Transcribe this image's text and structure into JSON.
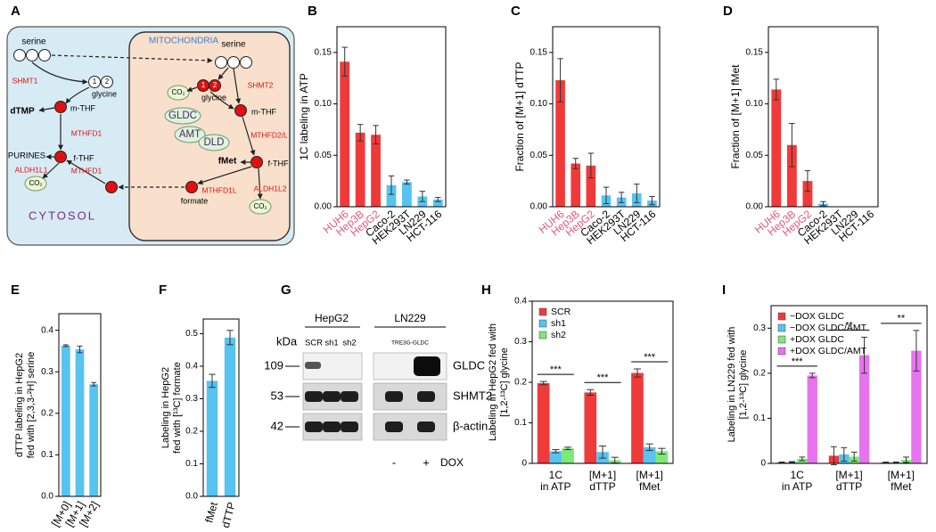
{
  "diagram": {
    "panel": "A",
    "texts": [
      "serine",
      "serine",
      "MITOCHONDRIA",
      "SHMT1",
      "SHMT2",
      "glycine",
      "glycine",
      "dTMP",
      "m-THF",
      "m-THF",
      "GLDC",
      "AMT",
      "DLD",
      "MTHFD1",
      "MTHFD2/L",
      "PURINES",
      "f-THF",
      "fMet",
      "f-THF",
      "ALDH1L1",
      "MTHFD1",
      "MTHFD1L",
      "ALDH1L2",
      "formate",
      "CO₂",
      "CO₂",
      "CO₂",
      "CYTOSOL",
      "1",
      "2",
      "1",
      "2"
    ]
  },
  "chart_data": [
    {
      "panel": "B",
      "type": "bar",
      "ylabel": "1C labeling in ATP",
      "categories": [
        "HUH6",
        "Hep3B",
        "HepG2",
        "Caco-2",
        "HEK293T",
        "LN229",
        "HCT-116"
      ],
      "category_colors": [
        "#e8587a",
        "#e8587a",
        "#e8587a",
        "#000000",
        "#000000",
        "#000000",
        "#000000"
      ],
      "ylim": [
        0,
        0.175
      ],
      "yticks": [
        {
          "value": 0,
          "label": "0.00"
        },
        {
          "value": 0.05,
          "label": "0.05"
        },
        {
          "value": 0.1,
          "label": "0.10"
        },
        {
          "value": 0.15,
          "label": "0.15"
        }
      ],
      "series": [
        {
          "colors": [
            "#f03a3a",
            "#f03a3a",
            "#f03a3a",
            "#56c3f0",
            "#56c3f0",
            "#56c3f0",
            "#56c3f0"
          ],
          "values": [
            0.141,
            0.072,
            0.07,
            0.021,
            0.024,
            0.01,
            0.007
          ],
          "errors": [
            0.014,
            0.008,
            0.009,
            0.009,
            0.002,
            0.005,
            0.002
          ]
        }
      ]
    },
    {
      "panel": "C",
      "type": "bar",
      "ylabel": "Fraction of [M+1] dTTP",
      "categories": [
        "HUH6",
        "Hep3B",
        "HepG2",
        "Caco-2",
        "HEK293T",
        "LN229",
        "HCT-116"
      ],
      "category_colors": [
        "#e8587a",
        "#e8587a",
        "#e8587a",
        "#000000",
        "#000000",
        "#000000",
        "#000000"
      ],
      "ylim": [
        0,
        0.175
      ],
      "yticks": [
        {
          "value": 0,
          "label": "0.00"
        },
        {
          "value": 0.05,
          "label": "0.05"
        },
        {
          "value": 0.1,
          "label": "0.10"
        },
        {
          "value": 0.15,
          "label": "0.15"
        }
      ],
      "series": [
        {
          "colors": [
            "#f03a3a",
            "#f03a3a",
            "#f03a3a",
            "#56c3f0",
            "#56c3f0",
            "#56c3f0",
            "#56c3f0"
          ],
          "values": [
            0.123,
            0.042,
            0.04,
            0.011,
            0.009,
            0.013,
            0.006
          ],
          "errors": [
            0.021,
            0.005,
            0.012,
            0.008,
            0.005,
            0.009,
            0.004
          ]
        }
      ]
    },
    {
      "panel": "D",
      "type": "bar",
      "ylabel": "Fraction of [M+1] fMet",
      "categories": [
        "HUH6",
        "Hep3B",
        "HepG2",
        "Caco-2",
        "HEK293T",
        "LN229",
        "HCT-116"
      ],
      "category_colors": [
        "#e8587a",
        "#e8587a",
        "#e8587a",
        "#000000",
        "#000000",
        "#000000",
        "#000000"
      ],
      "ylim": [
        0,
        0.175
      ],
      "yticks": [
        {
          "value": 0,
          "label": "0.00"
        },
        {
          "value": 0.05,
          "label": "0.05"
        },
        {
          "value": 0.1,
          "label": "0.10"
        },
        {
          "value": 0.15,
          "label": "0.15"
        }
      ],
      "series": [
        {
          "colors": [
            "#f03a3a",
            "#f03a3a",
            "#f03a3a",
            "#56c3f0",
            "#56c3f0",
            "#56c3f0",
            "#56c3f0"
          ],
          "values": [
            0.114,
            0.06,
            0.025,
            0.003,
            0,
            0,
            0
          ],
          "errors": [
            0.01,
            0.021,
            0.01,
            0.002,
            0,
            0,
            0
          ]
        }
      ]
    },
    {
      "panel": "E",
      "type": "bar",
      "ylabel": [
        "dTTP labeling in HepG2",
        "fed with [2,3,3-²H] serine"
      ],
      "categories": [
        "[M+0]",
        "[M+1]",
        "[M+2]"
      ],
      "ylim": [
        0,
        0.44
      ],
      "yticks": [
        {
          "value": 0,
          "label": "0.0"
        },
        {
          "value": 0.1,
          "label": "0.1"
        },
        {
          "value": 0.2,
          "label": "0.2"
        },
        {
          "value": 0.3,
          "label": "0.3"
        },
        {
          "value": 0.4,
          "label": "0.4"
        }
      ],
      "series": [
        {
          "color": "#56c3f0",
          "values": [
            0.363,
            0.354,
            0.27
          ],
          "errors": [
            0.002,
            0.008,
            0.004
          ]
        }
      ]
    },
    {
      "panel": "F",
      "type": "bar",
      "ylabel": [
        "Labeling in HepG2",
        "fed with [¹³C] formate"
      ],
      "categories": [
        "fMet",
        "dTTP"
      ],
      "ylim": [
        0,
        0.545
      ],
      "yticks": [
        {
          "value": 0,
          "label": "0.0"
        },
        {
          "value": 0.1,
          "label": "0.1"
        },
        {
          "value": 0.2,
          "label": "0.2"
        },
        {
          "value": 0.3,
          "label": "0.3"
        },
        {
          "value": 0.4,
          "label": "0.4"
        },
        {
          "value": 0.5,
          "label": "0.5"
        }
      ],
      "series": [
        {
          "color": "#56c3f0",
          "values": [
            0.355,
            0.488
          ],
          "errors": [
            0.02,
            0.022
          ]
        }
      ]
    },
    {
      "panel": "H",
      "type": "bar",
      "ylabel": [
        "Labeling in HepG2 fed with",
        "[1,2-¹³C] glycine"
      ],
      "categories": [
        [
          "1C",
          "in ATP"
        ],
        [
          "[M+1]",
          "dTTP"
        ],
        [
          "[M+1]",
          "fMet"
        ]
      ],
      "ylim": [
        0,
        0.4
      ],
      "yticks": [
        0,
        0.1,
        0.2,
        0.3,
        0.4
      ],
      "legend": "upper left",
      "series": [
        {
          "name": "SCR",
          "color": "#f03a3a",
          "values": [
            0.198,
            0.175,
            0.223
          ],
          "errors": [
            0.004,
            0.007,
            0.01
          ]
        },
        {
          "name": "sh1",
          "color": "#56c3f0",
          "values": [
            0.03,
            0.028,
            0.04
          ],
          "errors": [
            0.004,
            0.015,
            0.008
          ]
        },
        {
          "name": "sh2",
          "color": "#7ee87a",
          "values": [
            0.037,
            0.008,
            0.03
          ],
          "errors": [
            0.003,
            0.007,
            0.007
          ]
        }
      ],
      "annotations": [
        "***",
        "***",
        "***"
      ]
    },
    {
      "panel": "I",
      "type": "bar",
      "ylabel": [
        "Labeling in LN229 fed with",
        "[1,2-¹³C] glycine"
      ],
      "categories": [
        [
          "1C",
          "in ATP"
        ],
        [
          "[M+1]",
          "dTTP"
        ],
        [
          "[M+1]",
          "fMet"
        ]
      ],
      "ylim": [
        0,
        0.35
      ],
      "yticks": [
        0,
        0.1,
        0.2,
        0.3
      ],
      "legend": "upper left",
      "series": [
        {
          "name": "−DOX GLDC",
          "color": "#f03a3a",
          "values": [
            0.002,
            0.017,
            0.002
          ],
          "errors": [
            0.001,
            0.02,
            0.001
          ]
        },
        {
          "name": "−DOX GLDC/AMT",
          "color": "#56c3f0",
          "values": [
            0.003,
            0.02,
            0.002
          ],
          "errors": [
            0.001,
            0.015,
            0.001
          ]
        },
        {
          "name": "+DOX GLDC",
          "color": "#7ee87a",
          "values": [
            0.01,
            0.015,
            0.008
          ],
          "errors": [
            0.004,
            0.01,
            0.006
          ]
        },
        {
          "name": "+DOX GLDC/AMT",
          "color": "#e873ef",
          "values": [
            0.195,
            0.24,
            0.25
          ],
          "errors": [
            0.005,
            0.04,
            0.045
          ]
        }
      ],
      "annotations": [
        "***",
        "**",
        "**"
      ]
    }
  ],
  "blot": {
    "panel": "G",
    "cell_lines": [
      "HepG2",
      "LN229"
    ],
    "lanes": [
      "SCR",
      "sh1",
      "sh2",
      "TRE3G-GLDC"
    ],
    "size_unit": "kDa",
    "markers": [
      109,
      53,
      42
    ],
    "proteins": [
      "GLDC",
      "SHMT2",
      "β-actin"
    ],
    "dox": [
      "-",
      "+"
    ],
    "dox_label": "DOX"
  }
}
